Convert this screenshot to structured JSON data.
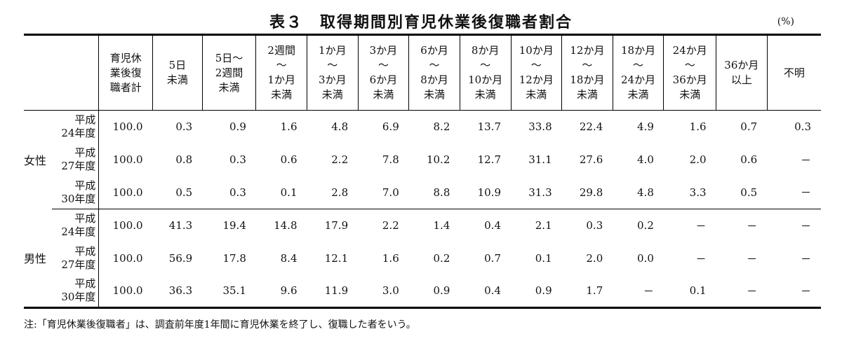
{
  "title": "表３　取得期間別育児休業後復職者割合",
  "unit": "(%)",
  "columns": [
    [
      "育児休",
      "業後復",
      "職者計"
    ],
    [
      "5日",
      "未満"
    ],
    [
      "5日～",
      "2週間",
      "未満"
    ],
    [
      "2週間",
      "～",
      "1か月",
      "未満"
    ],
    [
      "1か月",
      "～",
      "3か月",
      "未満"
    ],
    [
      "3か月",
      "～",
      "6か月",
      "未満"
    ],
    [
      "6か月",
      "～",
      "8か月",
      "未満"
    ],
    [
      "8か月",
      "～",
      "10か月",
      "未満"
    ],
    [
      "10か月",
      "～",
      "12か月",
      "未満"
    ],
    [
      "12か月",
      "～",
      "18か月",
      "未満"
    ],
    [
      "18か月",
      "～",
      "24か月",
      "未満"
    ],
    [
      "24か月",
      "～",
      "36か月",
      "未満"
    ],
    [
      "36か月",
      "以上"
    ],
    [
      "不明"
    ]
  ],
  "groups": [
    {
      "sex": "女性",
      "rows": [
        {
          "year": [
            "平成",
            "24年度"
          ],
          "values": [
            "100.0",
            "0.3",
            "0.9",
            "1.6",
            "4.8",
            "6.9",
            "8.2",
            "13.7",
            "33.8",
            "22.4",
            "4.9",
            "1.6",
            "0.7",
            "0.3"
          ]
        },
        {
          "year": [
            "平成",
            "27年度"
          ],
          "values": [
            "100.0",
            "0.8",
            "0.3",
            "0.6",
            "2.2",
            "7.8",
            "10.2",
            "12.7",
            "31.1",
            "27.6",
            "4.0",
            "2.0",
            "0.6",
            "－"
          ]
        },
        {
          "year": [
            "平成",
            "30年度"
          ],
          "values": [
            "100.0",
            "0.5",
            "0.3",
            "0.1",
            "2.8",
            "7.0",
            "8.8",
            "10.9",
            "31.3",
            "29.8",
            "4.8",
            "3.3",
            "0.5",
            "－"
          ]
        }
      ]
    },
    {
      "sex": "男性",
      "rows": [
        {
          "year": [
            "平成",
            "24年度"
          ],
          "values": [
            "100.0",
            "41.3",
            "19.4",
            "14.8",
            "17.9",
            "2.2",
            "1.4",
            "0.4",
            "2.1",
            "0.3",
            "0.2",
            "－",
            "－",
            "－"
          ]
        },
        {
          "year": [
            "平成",
            "27年度"
          ],
          "values": [
            "100.0",
            "56.9",
            "17.8",
            "8.4",
            "12.1",
            "1.6",
            "0.2",
            "0.7",
            "0.1",
            "2.0",
            "0.0",
            "－",
            "－",
            "－"
          ]
        },
        {
          "year": [
            "平成",
            "30年度"
          ],
          "values": [
            "100.0",
            "36.3",
            "35.1",
            "9.6",
            "11.9",
            "3.0",
            "0.9",
            "0.4",
            "0.9",
            "1.7",
            "－",
            "0.1",
            "－",
            "－"
          ]
        }
      ]
    }
  ],
  "note": "注:「育児休業後復職者」は、調査前年度1年間に育児休業を終了し、復職した者をいう。"
}
